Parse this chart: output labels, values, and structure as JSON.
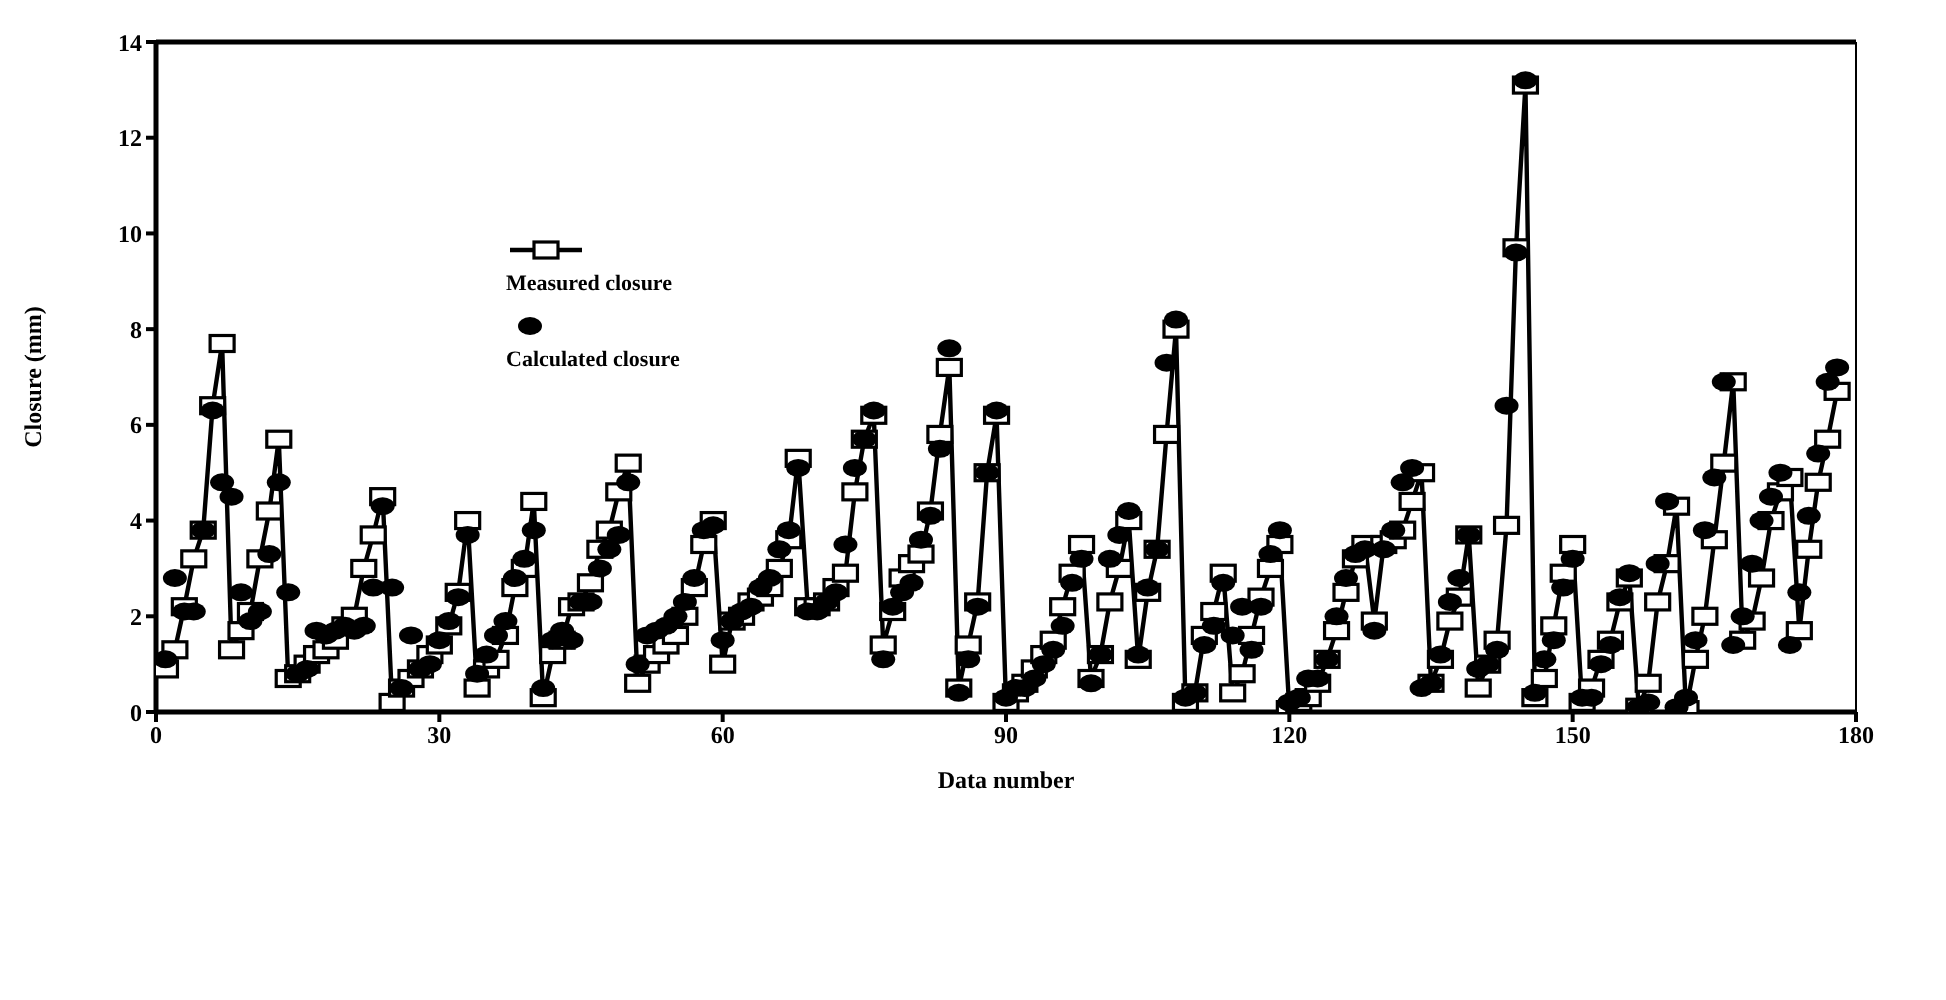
{
  "chart_data": {
    "type": "line",
    "xlabel": "Data number",
    "ylabel": "Closure (mm)",
    "x": [
      1,
      2,
      3,
      4,
      5,
      6,
      7,
      8,
      9,
      10,
      11,
      12,
      13,
      14,
      15,
      16,
      17,
      18,
      19,
      20,
      21,
      22,
      23,
      24,
      25,
      26,
      27,
      28,
      29,
      30,
      31,
      32,
      33,
      34,
      35,
      36,
      37,
      38,
      39,
      40,
      41,
      42,
      43,
      44,
      45,
      46,
      47,
      48,
      49,
      50,
      51,
      52,
      53,
      54,
      55,
      56,
      57,
      58,
      59,
      60,
      61,
      62,
      63,
      64,
      65,
      66,
      67,
      68,
      69,
      70,
      71,
      72,
      73,
      74,
      75,
      76,
      77,
      78,
      79,
      80,
      81,
      82,
      83,
      84,
      85,
      86,
      87,
      88,
      89,
      90,
      91,
      92,
      93,
      94,
      95,
      96,
      97,
      98,
      99,
      100,
      101,
      102,
      103,
      104,
      105,
      106,
      107,
      108,
      109,
      110,
      111,
      112,
      113,
      114,
      115,
      116,
      117,
      118,
      119,
      120,
      121,
      122,
      123,
      124,
      125,
      126,
      127,
      128,
      129,
      130,
      131,
      132,
      133,
      134,
      135,
      136,
      137,
      138,
      139,
      140,
      141,
      142,
      143,
      144,
      145,
      146,
      147,
      148,
      149,
      150,
      151,
      152,
      153,
      154,
      155,
      156,
      157,
      158,
      159,
      160,
      161,
      162,
      163,
      164,
      165,
      166,
      167,
      168,
      169,
      170,
      171,
      172,
      173,
      174,
      175,
      176,
      177,
      178
    ],
    "series": [
      {
        "name": "Measured closure",
        "type": "line",
        "marker": "square",
        "color": "#000000",
        "values": [
          0.9,
          1.3,
          2.2,
          3.2,
          3.8,
          6.4,
          7.7,
          1.3,
          1.7,
          2.1,
          3.2,
          4.2,
          5.7,
          0.7,
          0.8,
          1.0,
          1.2,
          1.3,
          1.5,
          1.8,
          2.0,
          3.0,
          3.7,
          4.5,
          0.2,
          0.5,
          0.7,
          0.9,
          1.2,
          1.4,
          1.8,
          2.5,
          4.0,
          0.5,
          0.9,
          1.1,
          1.6,
          2.6,
          3.0,
          4.4,
          0.3,
          1.2,
          1.5,
          2.2,
          2.3,
          2.7,
          3.4,
          3.8,
          4.6,
          5.2,
          0.6,
          1.0,
          1.2,
          1.4,
          1.6,
          2.0,
          2.6,
          3.5,
          4.0,
          1.0,
          1.9,
          2.0,
          2.3,
          2.4,
          2.6,
          3.0,
          3.6,
          5.3,
          2.2,
          2.2,
          2.3,
          2.6,
          2.9,
          4.6,
          5.7,
          6.2,
          1.4,
          2.1,
          2.8,
          3.1,
          3.3,
          4.2,
          5.8,
          7.2,
          0.5,
          1.4,
          2.3,
          5.0,
          6.2,
          0.2,
          0.4,
          0.6,
          0.9,
          1.2,
          1.5,
          2.2,
          2.9,
          3.5,
          0.7,
          1.2,
          2.3,
          3.0,
          4.0,
          1.1,
          2.5,
          3.4,
          5.8,
          8.0,
          0.2,
          0.4,
          1.6,
          2.1,
          2.9,
          0.4,
          0.8,
          1.6,
          2.4,
          3.0,
          3.5,
          0.05,
          0.2,
          0.3,
          0.6,
          1.1,
          1.7,
          2.5,
          3.2,
          3.5,
          1.9,
          3.5,
          3.6,
          3.8,
          4.4,
          5.0,
          0.6,
          1.1,
          1.9,
          2.4,
          3.7,
          0.5,
          1.0,
          1.5,
          3.9,
          9.7,
          13.1,
          0.3,
          0.7,
          1.8,
          2.9,
          3.5,
          0.2,
          0.5,
          1.1,
          1.5,
          2.3,
          2.8,
          0.1,
          0.6,
          2.3,
          3.1,
          4.3,
          0.05,
          1.1,
          2.0,
          3.6,
          5.2,
          6.9,
          1.5,
          1.9,
          2.8,
          4.0,
          4.6,
          4.9,
          1.7,
          3.4,
          4.8,
          5.7,
          6.7
        ]
      },
      {
        "name": "Calculated closure",
        "type": "scatter",
        "marker": "circle",
        "color": "#000000",
        "values": [
          1.1,
          2.8,
          2.1,
          2.1,
          3.8,
          6.3,
          4.8,
          4.5,
          2.5,
          1.9,
          2.1,
          3.3,
          4.8,
          2.5,
          0.8,
          0.9,
          1.7,
          1.6,
          1.7,
          1.8,
          1.7,
          1.8,
          2.6,
          4.3,
          2.6,
          0.5,
          1.6,
          0.9,
          1.0,
          1.5,
          1.9,
          2.4,
          3.7,
          0.8,
          1.2,
          1.6,
          1.9,
          2.8,
          3.2,
          3.8,
          0.5,
          1.5,
          1.7,
          1.5,
          2.3,
          2.3,
          3.0,
          3.4,
          3.7,
          4.8,
          1.0,
          1.6,
          1.7,
          1.8,
          2.0,
          2.3,
          2.8,
          3.8,
          3.9,
          1.5,
          1.9,
          2.1,
          2.2,
          2.6,
          2.8,
          3.4,
          3.8,
          5.1,
          2.1,
          2.1,
          2.3,
          2.5,
          3.5,
          5.1,
          5.7,
          6.3,
          1.1,
          2.2,
          2.5,
          2.7,
          3.6,
          4.1,
          5.5,
          7.6,
          0.4,
          1.1,
          2.2,
          5.0,
          6.3,
          0.3,
          0.5,
          0.5,
          0.7,
          1.0,
          1.3,
          1.8,
          2.7,
          3.2,
          0.6,
          1.2,
          3.2,
          3.7,
          4.2,
          1.2,
          2.6,
          3.4,
          7.3,
          8.2,
          0.3,
          0.4,
          1.4,
          1.8,
          2.7,
          1.6,
          2.2,
          1.3,
          2.2,
          3.3,
          3.8,
          0.2,
          0.3,
          0.7,
          0.7,
          1.1,
          2.0,
          2.8,
          3.3,
          3.4,
          1.7,
          3.4,
          3.8,
          4.8,
          5.1,
          0.5,
          0.6,
          1.2,
          2.3,
          2.8,
          3.7,
          0.9,
          1.0,
          1.3,
          6.4,
          9.6,
          13.2,
          0.4,
          1.1,
          1.5,
          2.6,
          3.2,
          0.3,
          0.3,
          1.0,
          1.4,
          2.4,
          2.9,
          0.1,
          0.2,
          3.1,
          4.4,
          0.1,
          0.3,
          1.5,
          3.8,
          4.9,
          6.9,
          1.4,
          2.0,
          3.1,
          4.0,
          4.5,
          5.0,
          1.4,
          2.5,
          4.1,
          5.4,
          6.9,
          7.2
        ]
      }
    ],
    "xlim": [
      0,
      180
    ],
    "xticks": [
      0,
      30,
      60,
      90,
      120,
      150,
      180
    ],
    "ylim": [
      0,
      14
    ],
    "yticks": [
      0,
      2,
      4,
      6,
      8,
      10,
      12,
      14
    ],
    "legend": "top left"
  }
}
